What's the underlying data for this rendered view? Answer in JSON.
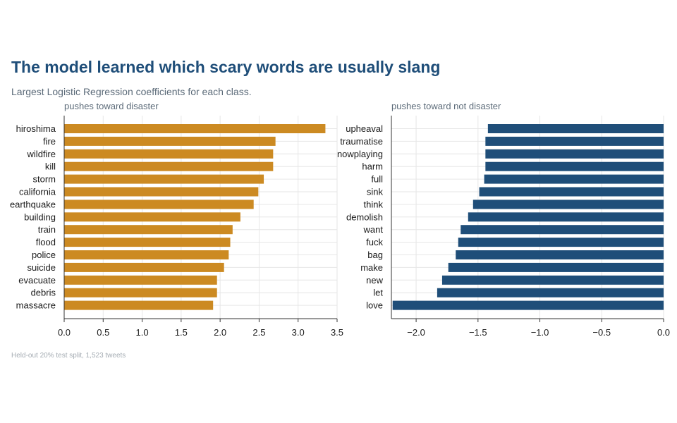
{
  "title": "The model learned which scary words are usually slang",
  "subtitle": "Largest Logistic Regression coefficients for each class.",
  "footnote": "Held-out 20% test split, 1,523 tweets",
  "colors": {
    "title": "#1f4e79",
    "disaster": "#cc8a22",
    "not_disaster": "#1f4e79"
  },
  "chart_data": [
    {
      "type": "bar",
      "orientation": "horizontal",
      "title": "pushes toward disaster",
      "color": "#cc8a22",
      "categories": [
        "hiroshima",
        "fire",
        "wildfire",
        "kill",
        "storm",
        "california",
        "earthquake",
        "building",
        "train",
        "flood",
        "police",
        "suicide",
        "evacuate",
        "debris",
        "massacre"
      ],
      "values": [
        3.35,
        2.71,
        2.68,
        2.68,
        2.56,
        2.49,
        2.43,
        2.26,
        2.16,
        2.13,
        2.11,
        2.05,
        1.96,
        1.96,
        1.91
      ],
      "xlim": [
        0,
        3.5
      ],
      "xticks": [
        0.0,
        0.5,
        1.0,
        1.5,
        2.0,
        2.5,
        3.0,
        3.5
      ],
      "xtick_labels": [
        "0.0",
        "0.5",
        "1.0",
        "1.5",
        "2.0",
        "2.5",
        "3.0",
        "3.5"
      ],
      "grid": true
    },
    {
      "type": "bar",
      "orientation": "horizontal",
      "title": "pushes toward not disaster",
      "color": "#1f4e79",
      "categories": [
        "upheaval",
        "traumatise",
        "nowplaying",
        "harm",
        "full",
        "sink",
        "think",
        "demolish",
        "want",
        "fuck",
        "bag",
        "make",
        "new",
        "let",
        "love"
      ],
      "values": [
        -1.42,
        -1.44,
        -1.44,
        -1.44,
        -1.45,
        -1.49,
        -1.54,
        -1.58,
        -1.64,
        -1.66,
        -1.68,
        -1.74,
        -1.79,
        -1.83,
        -2.19
      ],
      "xlim": [
        -2.2,
        0
      ],
      "xticks": [
        -2.0,
        -1.5,
        -1.0,
        -0.5,
        0.0
      ],
      "xtick_labels": [
        "−2.0",
        "−1.5",
        "−1.0",
        "−0.5",
        "0.0"
      ],
      "grid": true
    }
  ]
}
